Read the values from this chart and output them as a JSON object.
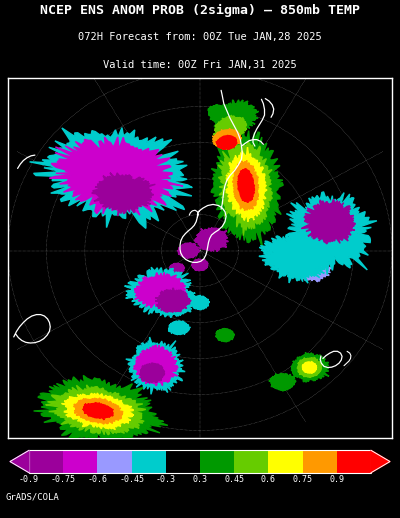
{
  "title_line1": "NCEP ENS ANOM PROB (2sigma) – 850mb TEMP",
  "title_line2": "072H Forecast from: 00Z Tue JAN,28 2025",
  "title_line3": "Valid time: 00Z Fri JAN,31 2025",
  "background_color": "#000000",
  "map_border_color": "#ffffff",
  "colorbar_colors": [
    "#9b009b",
    "#cc00cc",
    "#9999ff",
    "#00cccc",
    "#000000",
    "#009900",
    "#66cc00",
    "#ffff00",
    "#ff9900",
    "#ff0000"
  ],
  "colorbar_label_values": [
    "-0.9",
    "-0.75",
    "-0.6",
    "-0.45",
    "-0.3",
    "0.3",
    "0.45",
    "0.6",
    "0.75",
    "0.9"
  ],
  "footer_text": "GrADS/COLA",
  "title_fontsize": 9.5,
  "subtitle_fontsize": 7.5,
  "label_fontsize": 6.5,
  "footer_fontsize": 6.5,
  "map_bg_color": "#000000",
  "c_purple_dark": "#9b009b",
  "c_purple": "#cc00cc",
  "c_light_blue": "#9999ff",
  "c_cyan": "#00cccc",
  "c_green": "#009900",
  "c_yellow_green": "#66cc00",
  "c_yellow": "#ffff00",
  "c_orange": "#ff9900",
  "c_red": "#ff0000"
}
